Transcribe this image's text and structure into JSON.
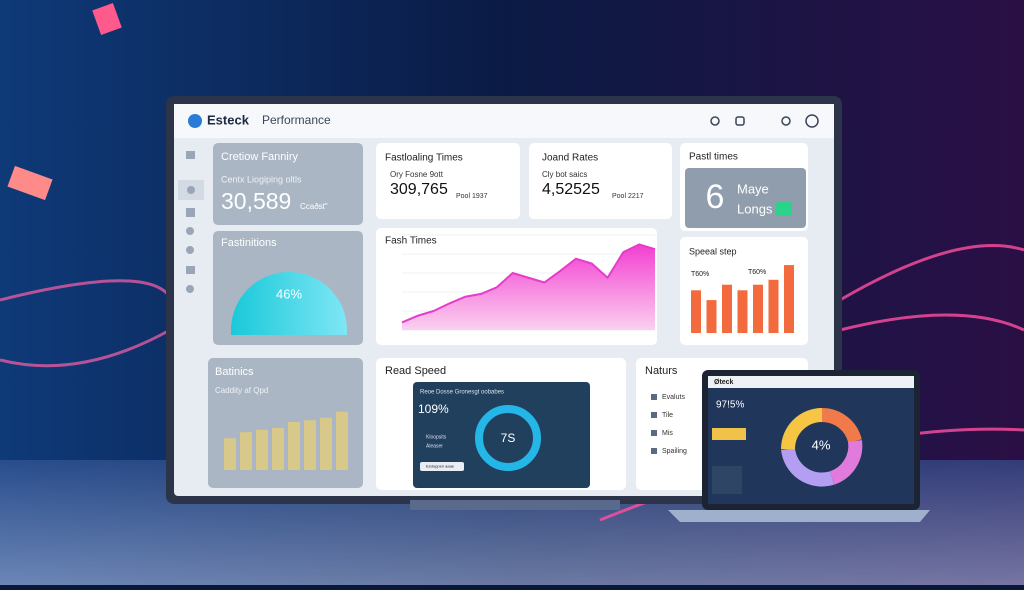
{
  "header": {
    "logo": "Esteck",
    "title": "Performance"
  },
  "creation": {
    "title": "Cretiow Fanniry",
    "subtitle": "Centx Liogiping oltls",
    "value": "30,589",
    "note": "Ccaðst\""
  },
  "gauge": {
    "title": "Fastinitions",
    "value": "46%"
  },
  "fastloading": {
    "title": "Fastloaling Times",
    "subtitle": "Ory Fosne 9ott",
    "value": "309,765",
    "note": "Pool 1937"
  },
  "rates": {
    "title": "Joand Rates",
    "subtitle": "Cly bot saics",
    "value": "4,52525",
    "note": "Pool 2217"
  },
  "past": {
    "title": "Pastl times",
    "value": "6",
    "line1": "Maye",
    "line2": "Longs"
  },
  "fash": {
    "title": "Fash Times",
    "values": [
      8,
      15,
      20,
      28,
      35,
      38,
      45,
      60,
      55,
      50,
      62,
      75,
      70,
      55,
      82,
      90,
      85
    ]
  },
  "speeal": {
    "title": "Speeal step",
    "label1": "T60%",
    "label2": "T60%",
    "values": [
      61,
      47,
      69,
      61,
      69,
      76,
      97
    ]
  },
  "batinics": {
    "title": "Batinics",
    "subtitle": "Caddity af Qpd",
    "values": [
      53,
      63,
      67,
      70,
      80,
      83,
      87,
      97
    ]
  },
  "read": {
    "title": "Read Speed",
    "inner_title": "Reoe Dosse Gronesgt oobabes",
    "value": "109%",
    "legend1": "Kloopsits",
    "legend2": "Aleaser",
    "button": "Esdoppen aaae",
    "center": "7S"
  },
  "naturs": {
    "title": "Naturs",
    "items": [
      "Evaluts",
      "Tile",
      "Mis",
      "Spailing"
    ]
  },
  "laptop": {
    "logo": "Øteck",
    "value": "97!5%",
    "center": "4%"
  }
}
